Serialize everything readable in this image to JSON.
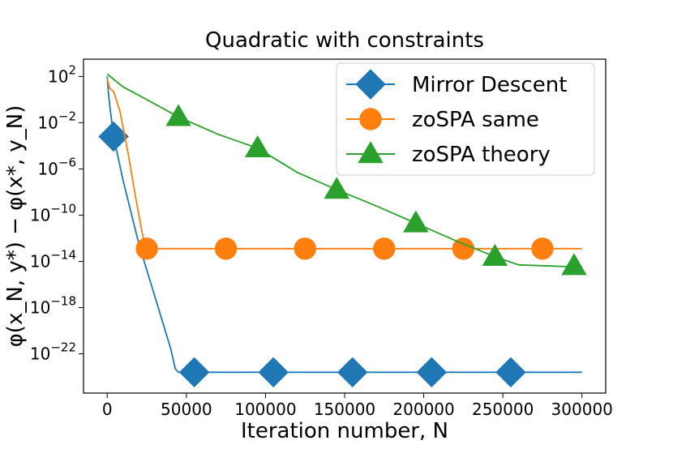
{
  "chart_data": {
    "type": "line",
    "title": "Quadratic with constraints",
    "xlabel": "Iteration number, N",
    "ylabel": "φ(x_N, y*) − φ(x*, y_N)",
    "yscale": "log",
    "xlim": [
      -15000,
      315000
    ],
    "ylim_exp": [
      -25.4,
      3.5
    ],
    "legend_position": "upper right",
    "x_ticks": [
      0,
      50000,
      100000,
      150000,
      200000,
      250000,
      300000
    ],
    "x_tick_labels": [
      "0",
      "50000",
      "100000",
      "150000",
      "200000",
      "250000",
      "300000"
    ],
    "y_ticks_exp": [
      2,
      -2,
      -6,
      -10,
      -14,
      -18,
      -22
    ],
    "y_tick_base": "10",
    "y_tick_exponents": [
      "2",
      "−2",
      "−6",
      "−10",
      "−14",
      "−18",
      "−22"
    ],
    "series": [
      {
        "name": "Mirror Descent",
        "color": "#1f77b4",
        "marker": "diamond",
        "line": [
          [
            0,
            2.0
          ],
          [
            800,
            0.5
          ],
          [
            2000,
            -1.0
          ],
          [
            4000,
            -3.2
          ],
          [
            10000,
            -7.0
          ],
          [
            20000,
            -12.5
          ],
          [
            30000,
            -17.0
          ],
          [
            40000,
            -21.5
          ],
          [
            43000,
            -23.3
          ],
          [
            45000,
            -23.6
          ],
          [
            300000,
            -23.6
          ]
        ],
        "markers": [
          [
            4000,
            -3.2
          ],
          [
            55000,
            -23.6
          ],
          [
            105000,
            -23.6
          ],
          [
            155000,
            -23.6
          ],
          [
            205000,
            -23.6
          ],
          [
            255000,
            -23.6
          ]
        ]
      },
      {
        "name": "zoSPA same",
        "color": "#ff7f0e",
        "marker": "circle",
        "line": [
          [
            0,
            1.8
          ],
          [
            1500,
            1.0
          ],
          [
            4000,
            0.7
          ],
          [
            8000,
            -1.0
          ],
          [
            13000,
            -4.5
          ],
          [
            18000,
            -8.5
          ],
          [
            22000,
            -11.5
          ],
          [
            24500,
            -12.9
          ],
          [
            300000,
            -12.9
          ]
        ],
        "markers": [
          [
            25000,
            -12.9
          ],
          [
            75000,
            -12.9
          ],
          [
            125000,
            -12.9
          ],
          [
            175000,
            -12.9
          ],
          [
            225000,
            -12.9
          ],
          [
            275000,
            -12.9
          ]
        ]
      },
      {
        "name": "zoSPA theory",
        "color": "#2ca02c",
        "marker": "triangle",
        "line": [
          [
            0,
            2.2
          ],
          [
            10000,
            1.1
          ],
          [
            25000,
            0.0
          ],
          [
            45000,
            -1.5
          ],
          [
            70000,
            -3.0
          ],
          [
            95000,
            -4.2
          ],
          [
            120000,
            -6.3
          ],
          [
            145000,
            -7.8
          ],
          [
            170000,
            -9.2
          ],
          [
            195000,
            -10.7
          ],
          [
            220000,
            -12.2
          ],
          [
            245000,
            -13.6
          ],
          [
            260000,
            -14.3
          ],
          [
            280000,
            -14.4
          ],
          [
            300000,
            -14.5
          ]
        ],
        "markers": [
          [
            45000,
            -1.5
          ],
          [
            95000,
            -4.2
          ],
          [
            145000,
            -7.8
          ],
          [
            195000,
            -10.7
          ],
          [
            245000,
            -13.6
          ],
          [
            295000,
            -14.4
          ]
        ]
      }
    ]
  }
}
